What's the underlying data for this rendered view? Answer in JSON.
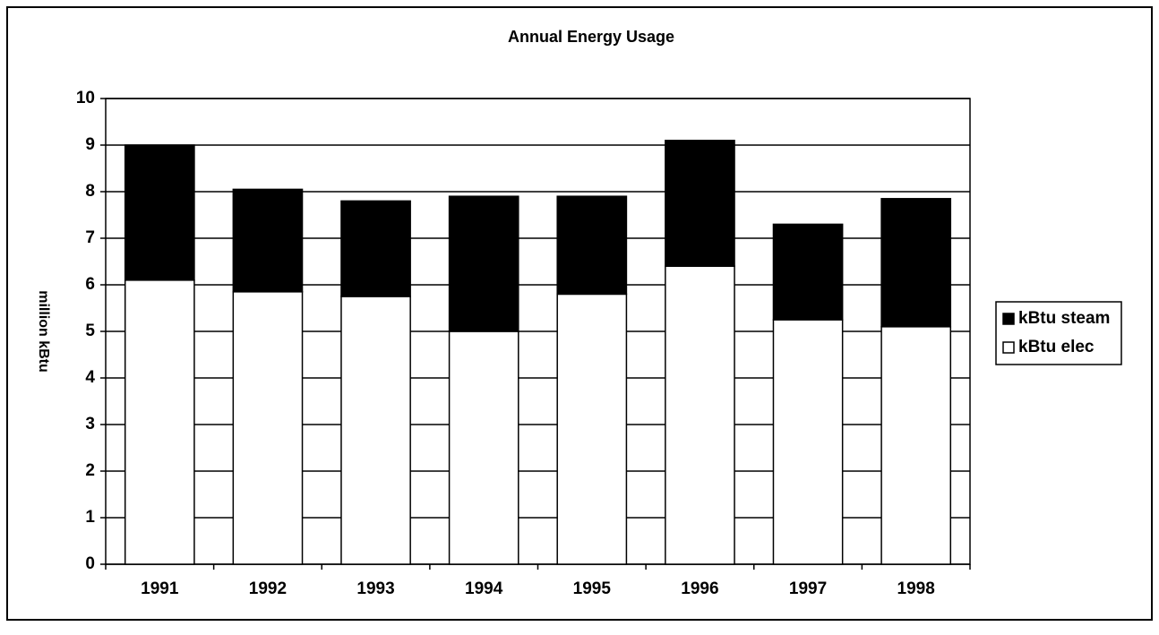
{
  "chart_data": {
    "type": "stacked_bar",
    "title": "Annual Energy Usage",
    "y_label": "million kBtu",
    "categories": [
      "1991",
      "1992",
      "1993",
      "1994",
      "1995",
      "1996",
      "1997",
      "1998"
    ],
    "series": [
      {
        "name": "kBtu elec",
        "color": "#ffffff",
        "values": [
          6.1,
          5.85,
          5.75,
          5.0,
          5.8,
          6.4,
          5.25,
          5.1
        ]
      },
      {
        "name": "kBtu steam",
        "color": "#000000",
        "values": [
          2.9,
          2.2,
          2.05,
          2.9,
          2.1,
          2.7,
          2.05,
          2.75
        ]
      }
    ],
    "ylim": [
      0,
      10
    ],
    "yticks": [
      0,
      1,
      2,
      3,
      4,
      5,
      6,
      7,
      8,
      9,
      10
    ],
    "grid": true,
    "legend": "right"
  }
}
